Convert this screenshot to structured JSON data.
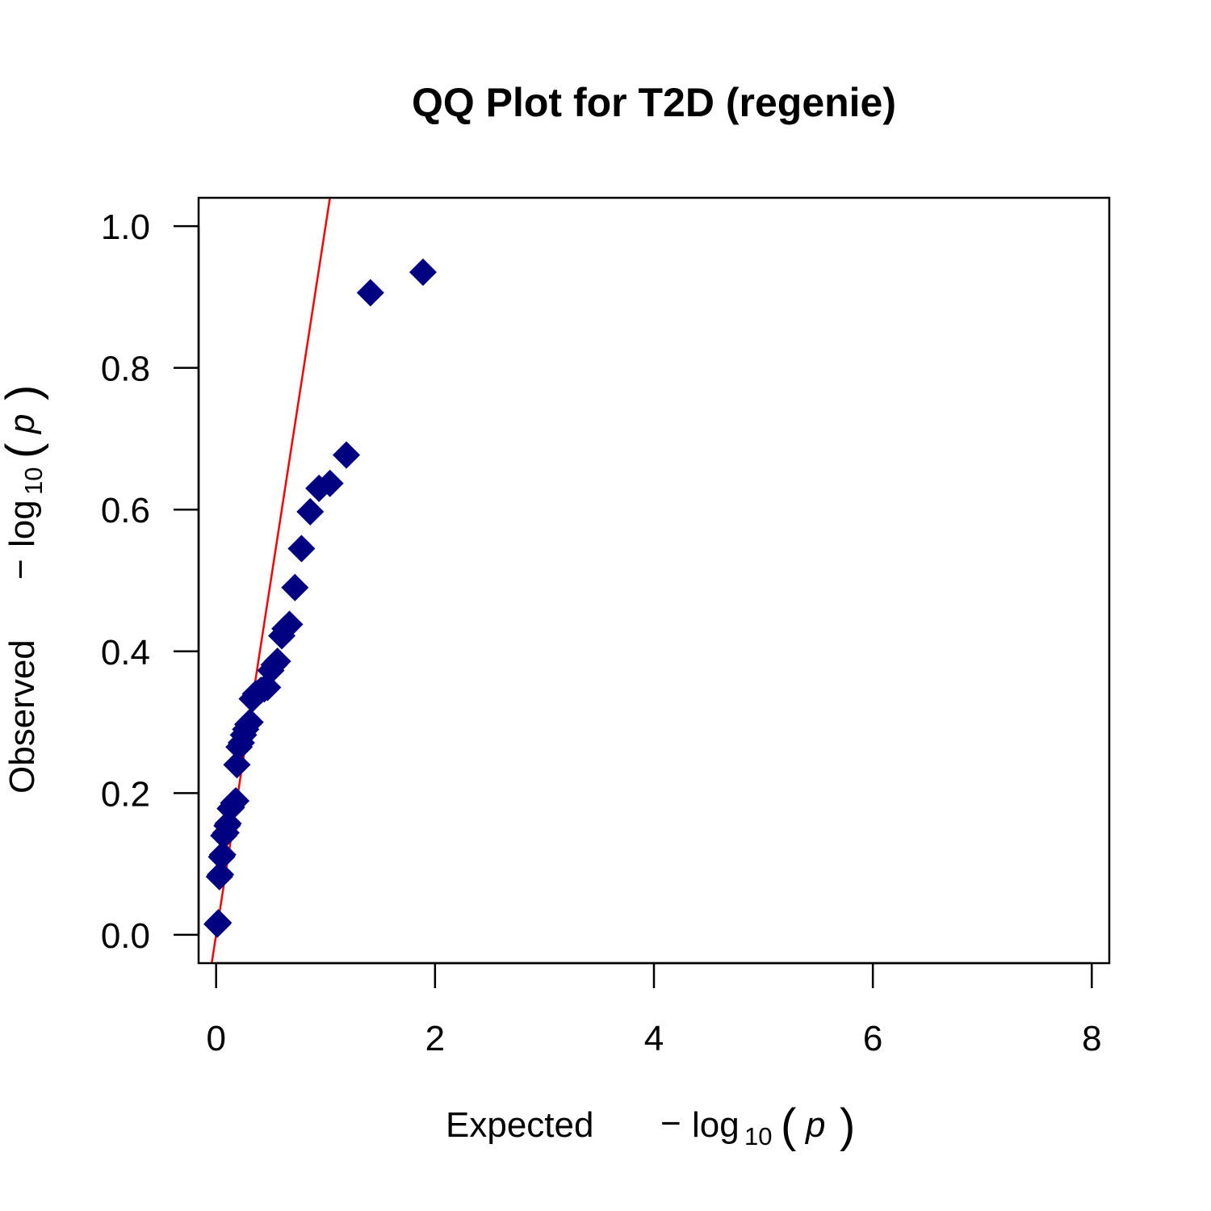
{
  "chart_data": {
    "type": "scatter",
    "title": "QQ Plot for T2D (regenie)",
    "xlabel": {
      "word": "Expected",
      "minus": "−",
      "log": "log",
      "base": "10",
      "open_paren": "(",
      "var": "p",
      "close_paren": ")"
    },
    "ylabel": {
      "word": "Observed",
      "minus": "−",
      "log": "log",
      "base": "10",
      "open_paren": "(",
      "var": "p",
      "close_paren": ")"
    },
    "xlim": [
      -0.16,
      8.16
    ],
    "ylim": [
      -0.04,
      1.04
    ],
    "xticks": [
      "0",
      "2",
      "4",
      "6",
      "8"
    ],
    "yticks": [
      "0.0",
      "0.2",
      "0.4",
      "0.6",
      "0.8",
      "1.0"
    ],
    "grid": false,
    "marker": "diamond",
    "colors": {
      "points": "#000080",
      "reference_line": "#ff0000",
      "axes": "#000000"
    },
    "reference_line": {
      "slope": 1.0,
      "intercept": 0.0
    },
    "series": [
      {
        "x": [
          1.89,
          1.41,
          1.19,
          1.04,
          0.94,
          0.86,
          0.78,
          0.72,
          0.67,
          0.63,
          0.6,
          0.56,
          0.53,
          0.5,
          0.47,
          0.44,
          0.41,
          0.38,
          0.36,
          0.33,
          0.31,
          0.29,
          0.27,
          0.25,
          0.23,
          0.21,
          0.19,
          0.18,
          0.16,
          0.14,
          0.13,
          0.11,
          0.1,
          0.09,
          0.07,
          0.06,
          0.05,
          0.04,
          0.03,
          0.02,
          0.01
        ],
        "y": [
          0.935,
          0.906,
          0.677,
          0.637,
          0.63,
          0.597,
          0.545,
          0.49,
          0.438,
          0.432,
          0.422,
          0.386,
          0.381,
          0.373,
          0.349,
          0.347,
          0.345,
          0.341,
          0.34,
          0.333,
          0.3,
          0.297,
          0.29,
          0.282,
          0.271,
          0.265,
          0.24,
          0.189,
          0.186,
          0.18,
          0.178,
          0.157,
          0.154,
          0.144,
          0.14,
          0.113,
          0.11,
          0.085,
          0.082,
          0.017,
          0.015
        ]
      }
    ]
  }
}
